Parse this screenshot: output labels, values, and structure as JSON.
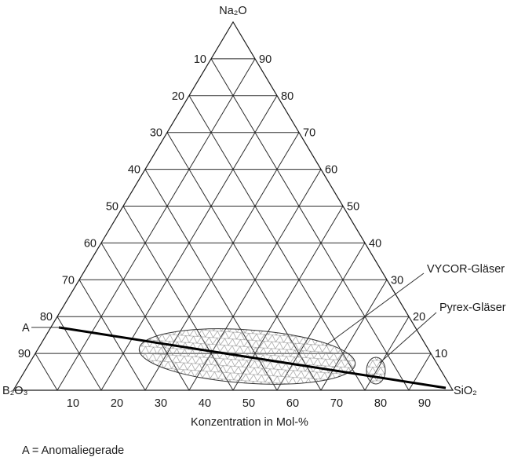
{
  "vertices": {
    "top": "Na₂O",
    "bottom_left": "B₂O₃",
    "bottom_right": "SiO₂"
  },
  "ticks": {
    "left_edge": [
      "10",
      "20",
      "30",
      "40",
      "50",
      "60",
      "70",
      "80",
      "90"
    ],
    "right_edge": [
      "90",
      "80",
      "70",
      "60",
      "50",
      "40",
      "30",
      "20",
      "10"
    ],
    "bottom_edge": [
      "10",
      "20",
      "30",
      "40",
      "50",
      "60",
      "70",
      "80",
      "90"
    ]
  },
  "x_axis_label": "Konzentration in Mol-%",
  "regions": {
    "vycor": "VYCOR-Gläser",
    "pyrex": "Pyrex-Gläser"
  },
  "anomaly_line": {
    "label": "A",
    "legend": "A = Anomaliegerade"
  },
  "colors": {
    "lines": "#2b2b2b",
    "anomaly": "#000000",
    "hatch": "#888888"
  }
}
